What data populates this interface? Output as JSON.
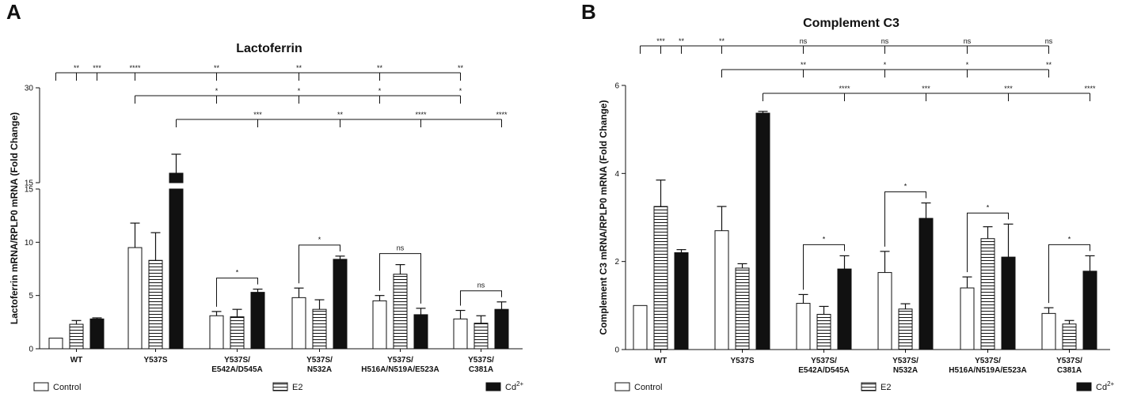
{
  "panels": [
    {
      "letter": "A",
      "title": "Lactoferrin"
    },
    {
      "letter": "B",
      "title": "Complement C3"
    }
  ],
  "legend": [
    {
      "label": "Control",
      "pattern": "open"
    },
    {
      "label": "E2",
      "pattern": "striped"
    },
    {
      "label": "Cd",
      "sup": "2+",
      "pattern": "solid"
    }
  ],
  "chart_data": [
    {
      "type": "bar",
      "title": "Lactoferrin",
      "ylabel": "Lactoferrin mRNA/RPLP0 mRNA (Fold Change)",
      "xlabel": "",
      "axis_break": true,
      "ylim_lower": [
        0,
        15
      ],
      "ylim_upper": [
        15,
        30
      ],
      "yticks_lower": [
        "0",
        "5",
        "10",
        "15"
      ],
      "yticks_upper": [
        "15",
        "30"
      ],
      "categories": [
        [
          "WT"
        ],
        [
          "Y537S"
        ],
        [
          "Y537S/",
          "E542A/D545A"
        ],
        [
          "Y537S/",
          "N532A"
        ],
        [
          "Y537S/",
          "H516A/N519A/E523A"
        ],
        [
          "Y537S/",
          "C381A"
        ]
      ],
      "series": [
        {
          "name": "Control",
          "values": [
            1.0,
            9.5,
            3.1,
            4.8,
            4.5,
            2.8
          ],
          "errors": [
            0,
            2.3,
            0.4,
            0.9,
            0.5,
            0.8
          ]
        },
        {
          "name": "E2",
          "values": [
            2.3,
            8.3,
            3.0,
            3.7,
            7.0,
            2.4
          ],
          "errors": [
            0.35,
            2.6,
            0.7,
            0.9,
            0.9,
            0.7
          ]
        },
        {
          "name": "Cd2+",
          "values": [
            2.8,
            16.5,
            5.3,
            8.4,
            3.2,
            3.7
          ],
          "errors": [
            0.1,
            3.0,
            0.3,
            0.3,
            0.6,
            0.7
          ]
        }
      ],
      "comparisons": [
        {
          "row": 0,
          "from_bar": 0,
          "targets": [
            {
              "bar": 1,
              "label": "**"
            },
            {
              "bar": 2,
              "label": "***"
            },
            {
              "bar": 3,
              "label": "****"
            },
            {
              "bar": 6,
              "label": "**"
            },
            {
              "bar": 9,
              "label": "**"
            },
            {
              "bar": 12,
              "label": "**"
            },
            {
              "bar": 15,
              "label": "**"
            }
          ]
        },
        {
          "row": 1,
          "from_bar": 3,
          "targets": [
            {
              "bar": 6,
              "label": "*"
            },
            {
              "bar": 9,
              "label": "*"
            },
            {
              "bar": 12,
              "label": "*"
            },
            {
              "bar": 15,
              "label": "*"
            }
          ]
        },
        {
          "row": 2,
          "from_bar": 5,
          "targets": [
            {
              "bar": 8,
              "label": "***"
            },
            {
              "bar": 11,
              "label": "**"
            },
            {
              "bar": 14,
              "label": "****"
            },
            {
              "bar": 17,
              "label": "****"
            }
          ]
        }
      ],
      "within_group": [
        {
          "group": 2,
          "label": "*"
        },
        {
          "group": 3,
          "label": "*"
        },
        {
          "group": 4,
          "label": "ns"
        },
        {
          "group": 5,
          "label": "ns"
        }
      ]
    },
    {
      "type": "bar",
      "title": "Complement C3",
      "ylabel": "Complement C3 mRNA/RPLP0 mRNA (Fold Change)",
      "xlabel": "",
      "ylim": [
        0,
        6
      ],
      "yticks": [
        "0",
        "2",
        "4",
        "6"
      ],
      "categories": [
        [
          "WT"
        ],
        [
          "Y537S"
        ],
        [
          "Y537S/",
          "E542A/D545A"
        ],
        [
          "Y537S/",
          "N532A"
        ],
        [
          "Y537S/",
          "H516A/N519A/E523A"
        ],
        [
          "Y537S/",
          "C381A"
        ]
      ],
      "series": [
        {
          "name": "Control",
          "values": [
            1.0,
            2.7,
            1.05,
            1.75,
            1.4,
            0.82
          ],
          "errors": [
            0,
            0.55,
            0.2,
            0.48,
            0.25,
            0.13
          ]
        },
        {
          "name": "E2",
          "values": [
            3.25,
            1.85,
            0.8,
            0.92,
            2.52,
            0.58
          ],
          "errors": [
            0.6,
            0.1,
            0.18,
            0.12,
            0.27,
            0.08
          ]
        },
        {
          "name": "Cd2+",
          "values": [
            2.2,
            5.37,
            1.83,
            2.98,
            2.1,
            1.78
          ],
          "errors": [
            0.07,
            0.04,
            0.3,
            0.35,
            0.75,
            0.35
          ]
        }
      ],
      "comparisons": [
        {
          "row": 0,
          "from_bar": 0,
          "targets": [
            {
              "bar": 1,
              "label": "***"
            },
            {
              "bar": 2,
              "label": "**"
            },
            {
              "bar": 3,
              "label": "**"
            },
            {
              "bar": 6,
              "label": "ns"
            },
            {
              "bar": 9,
              "label": "ns"
            },
            {
              "bar": 12,
              "label": "ns"
            },
            {
              "bar": 15,
              "label": "ns"
            }
          ]
        },
        {
          "row": 1,
          "from_bar": 3,
          "targets": [
            {
              "bar": 6,
              "label": "**"
            },
            {
              "bar": 9,
              "label": "*"
            },
            {
              "bar": 12,
              "label": "*"
            },
            {
              "bar": 15,
              "label": "**"
            }
          ]
        },
        {
          "row": 2,
          "from_bar": 5,
          "targets": [
            {
              "bar": 8,
              "label": "****"
            },
            {
              "bar": 11,
              "label": "***"
            },
            {
              "bar": 14,
              "label": "***"
            },
            {
              "bar": 17,
              "label": "****"
            }
          ]
        }
      ],
      "within_group": [
        {
          "group": 2,
          "label": "*"
        },
        {
          "group": 3,
          "label": "*"
        },
        {
          "group": 4,
          "label": "*"
        },
        {
          "group": 5,
          "label": "*"
        }
      ]
    }
  ]
}
